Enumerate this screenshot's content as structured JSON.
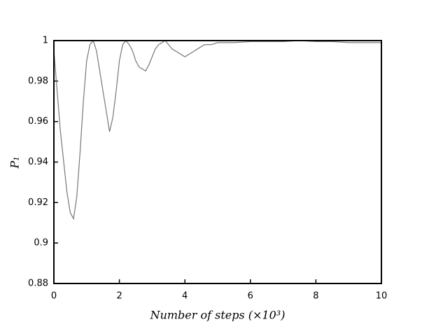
{
  "chart_data": {
    "type": "line",
    "x_label": "Number of steps (×10³)",
    "y_label": "P₁",
    "x": [
      0,
      0.1,
      0.2,
      0.3,
      0.4,
      0.5,
      0.6,
      0.7,
      0.8,
      0.9,
      1.0,
      1.1,
      1.2,
      1.3,
      1.4,
      1.5,
      1.6,
      1.7,
      1.8,
      1.9,
      2.0,
      2.1,
      2.2,
      2.3,
      2.4,
      2.5,
      2.6,
      2.7,
      2.8,
      2.9,
      3.0,
      3.1,
      3.2,
      3.3,
      3.4,
      3.5,
      3.6,
      3.8,
      4.0,
      4.2,
      4.4,
      4.6,
      4.8,
      5,
      5.5,
      6,
      6.5,
      7,
      7.5,
      8,
      8.5,
      9,
      9.5,
      10
    ],
    "series": [
      {
        "name": "P1",
        "color": "#777777",
        "values": [
          0.995,
          0.975,
          0.955,
          0.94,
          0.925,
          0.915,
          0.912,
          0.923,
          0.945,
          0.97,
          0.99,
          0.998,
          1.0,
          0.995,
          0.985,
          0.975,
          0.965,
          0.955,
          0.962,
          0.975,
          0.99,
          0.998,
          1.0,
          0.998,
          0.995,
          0.99,
          0.987,
          0.986,
          0.985,
          0.988,
          0.992,
          0.996,
          0.998,
          0.999,
          1.0,
          0.998,
          0.996,
          0.994,
          0.992,
          0.994,
          0.996,
          0.998,
          0.998,
          0.999,
          0.999,
          0.9995,
          0.9995,
          0.9995,
          1.0,
          0.9995,
          0.9995,
          0.999,
          0.999,
          0.999
        ]
      }
    ],
    "xlim": [
      0,
      10
    ],
    "xticks": [
      0,
      2,
      4,
      6,
      8,
      10
    ],
    "ylim": [
      0.88,
      1
    ],
    "yticks": [
      0.88,
      0.9,
      0.92,
      0.94,
      0.96,
      0.98,
      1
    ]
  }
}
